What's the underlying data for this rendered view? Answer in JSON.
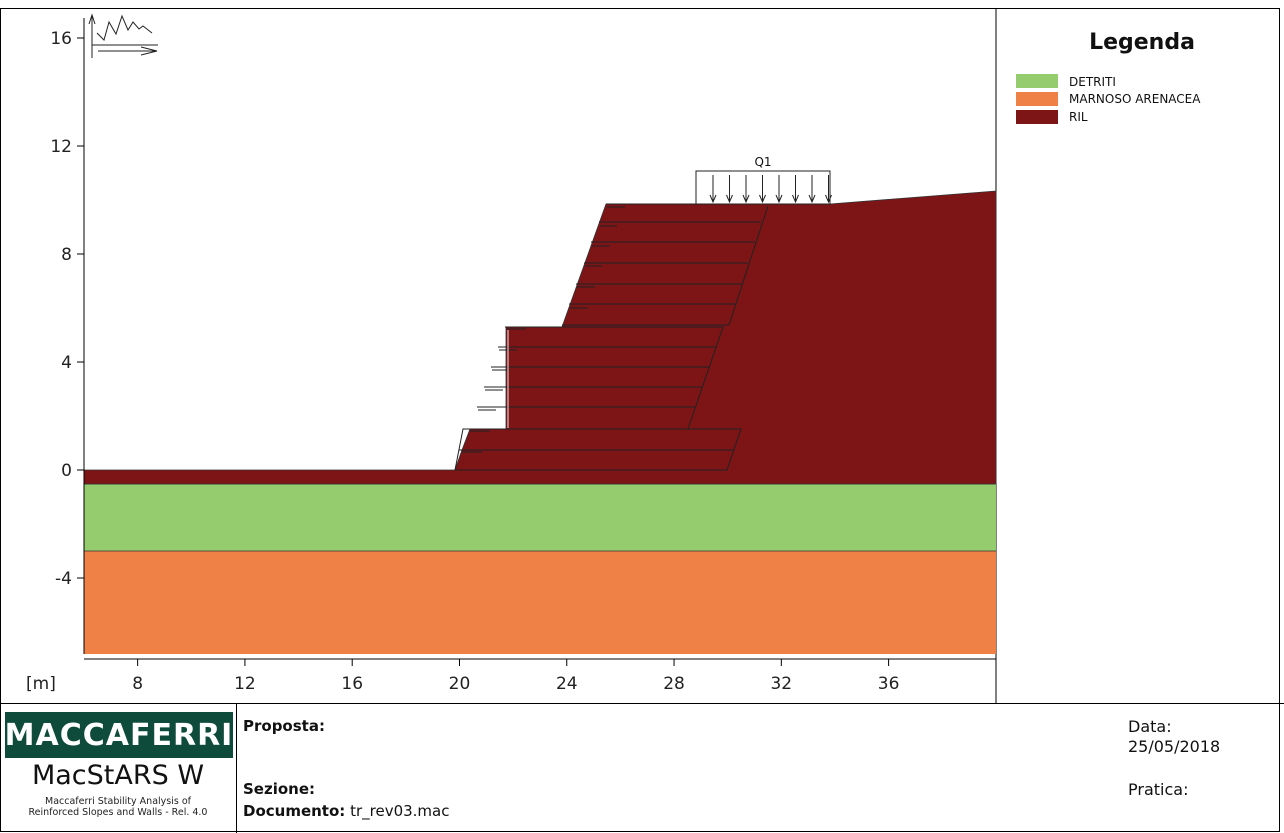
{
  "chart_data": {
    "type": "cross-section",
    "ylim": [
      -7,
      17
    ],
    "xlim": [
      6,
      40
    ],
    "x_ticks": [
      "8",
      "12",
      "16",
      "20",
      "24",
      "28",
      "32",
      "36"
    ],
    "y_ticks": [
      "16",
      "12",
      "8",
      "4",
      "0",
      "-4"
    ],
    "x_unit_label": "[m]",
    "legend": {
      "title": "Legenda",
      "entries": [
        {
          "name": "DETRITI",
          "color": "#95cc6e"
        },
        {
          "name": "MARNOSO ARENACEA",
          "color": "#f08146"
        },
        {
          "name": "RIL",
          "color": "#7d1416"
        }
      ]
    },
    "load": {
      "label": "Q1"
    }
  },
  "title_block": {
    "logo": "MACCAFERRI",
    "product": "MacStARS W",
    "product_sub_1": "Maccaferri Stability Analysis of",
    "product_sub_2": "Reinforced Slopes and Walls - Rel. 4.0",
    "proposta_label": "Proposta:",
    "sezione_label": "Sezione:",
    "documento_label": "Documento:",
    "documento_value": "tr_rev03.mac",
    "data_label": "Data:",
    "data_value": "25/05/2018",
    "pratica_label": "Pratica:"
  }
}
